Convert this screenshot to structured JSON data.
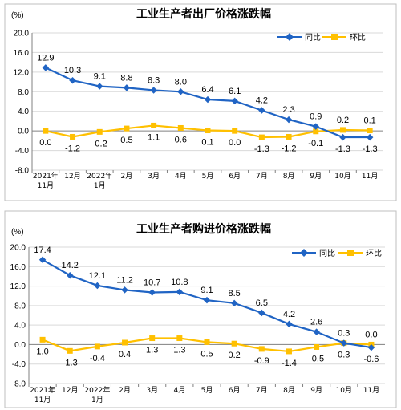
{
  "chart_data": [
    {
      "type": "line",
      "title": "工业生产者出厂价格涨跌幅",
      "unit": "(%)",
      "ylim": [
        -8.0,
        20.0
      ],
      "yticks": [
        "20.0",
        "16.0",
        "12.0",
        "8.0",
        "4.0",
        "0.0",
        "-4.0",
        "-8.0"
      ],
      "ytick_values": [
        20,
        16,
        12,
        8,
        4,
        0,
        -4,
        -8
      ],
      "categories": [
        [
          "2021年",
          "11月"
        ],
        [
          "12月"
        ],
        [
          "2022年",
          "1月"
        ],
        [
          "2月"
        ],
        [
          "3月"
        ],
        [
          "4月"
        ],
        [
          "5月"
        ],
        [
          "6月"
        ],
        [
          "7月"
        ],
        [
          "8月"
        ],
        [
          "9月"
        ],
        [
          "10月"
        ],
        [
          "11月"
        ]
      ],
      "legend_position": "top-right",
      "series": [
        {
          "name": "同比",
          "color": "#2064c4",
          "values": [
            12.9,
            10.3,
            9.1,
            8.8,
            8.3,
            8.0,
            6.4,
            6.1,
            4.2,
            2.3,
            0.9,
            -1.3,
            -1.3
          ],
          "labels": [
            "12.9",
            "10.3",
            "9.1",
            "8.8",
            "8.3",
            "8.0",
            "6.4",
            "6.1",
            "4.2",
            "2.3",
            "0.9",
            "-1.3",
            "-1.3"
          ],
          "label_pos": [
            "above",
            "above",
            "above",
            "above",
            "above",
            "above",
            "above",
            "above",
            "above",
            "above",
            "above",
            "below",
            "below"
          ]
        },
        {
          "name": "环比",
          "color": "#ffc000",
          "values": [
            0.0,
            -1.2,
            -0.2,
            0.5,
            1.1,
            0.6,
            0.1,
            0.0,
            -1.3,
            -1.2,
            -0.1,
            0.2,
            0.1
          ],
          "labels": [
            "0.0",
            "-1.2",
            "-0.2",
            "0.5",
            "1.1",
            "0.6",
            "0.1",
            "0.0",
            "-1.3",
            "-1.2",
            "-0.1",
            "0.2",
            "0.1"
          ],
          "label_pos": [
            "below",
            "below",
            "below",
            "below",
            "below",
            "below",
            "below",
            "below",
            "below",
            "below",
            "below",
            "above",
            "above"
          ]
        }
      ]
    },
    {
      "type": "line",
      "title": "工业生产者购进价格涨跌幅",
      "unit": "(%)",
      "ylim": [
        -8.0,
        20.0
      ],
      "yticks": [
        "20.0",
        "16.0",
        "12.0",
        "8.0",
        "4.0",
        "0.0",
        "-4.0",
        "-8.0"
      ],
      "ytick_values": [
        20,
        16,
        12,
        8,
        4,
        0,
        -4,
        -8
      ],
      "categories": [
        [
          "2021年",
          "11月"
        ],
        [
          "12月"
        ],
        [
          "2022年",
          "1月"
        ],
        [
          "2月"
        ],
        [
          "3月"
        ],
        [
          "4月"
        ],
        [
          "5月"
        ],
        [
          "6月"
        ],
        [
          "7月"
        ],
        [
          "8月"
        ],
        [
          "9月"
        ],
        [
          "10月"
        ],
        [
          "11月"
        ]
      ],
      "legend_position": "top-right",
      "series": [
        {
          "name": "同比",
          "color": "#2064c4",
          "values": [
            17.4,
            14.2,
            12.1,
            11.2,
            10.7,
            10.8,
            9.1,
            8.5,
            6.5,
            4.2,
            2.6,
            0.3,
            -0.6
          ],
          "labels": [
            "17.4",
            "14.2",
            "12.1",
            "11.2",
            "10.7",
            "10.8",
            "9.1",
            "8.5",
            "6.5",
            "4.2",
            "2.6",
            "0.3",
            "-0.6"
          ],
          "label_pos": [
            "above",
            "above",
            "above",
            "above",
            "above",
            "above",
            "above",
            "above",
            "above",
            "above",
            "above",
            "above",
            "below"
          ]
        },
        {
          "name": "环比",
          "color": "#ffc000",
          "values": [
            1.0,
            -1.3,
            -0.4,
            0.4,
            1.3,
            1.3,
            0.5,
            0.2,
            -0.9,
            -1.4,
            -0.5,
            0.3,
            0.0
          ],
          "labels": [
            "1.0",
            "-1.3",
            "-0.4",
            "0.4",
            "1.3",
            "1.3",
            "0.5",
            "0.2",
            "-0.9",
            "-1.4",
            "-0.5",
            "0.3",
            "0.0"
          ],
          "label_pos": [
            "below",
            "below",
            "below",
            "below",
            "below",
            "below",
            "below",
            "below",
            "below",
            "below",
            "below",
            "below",
            "above"
          ]
        }
      ]
    }
  ]
}
